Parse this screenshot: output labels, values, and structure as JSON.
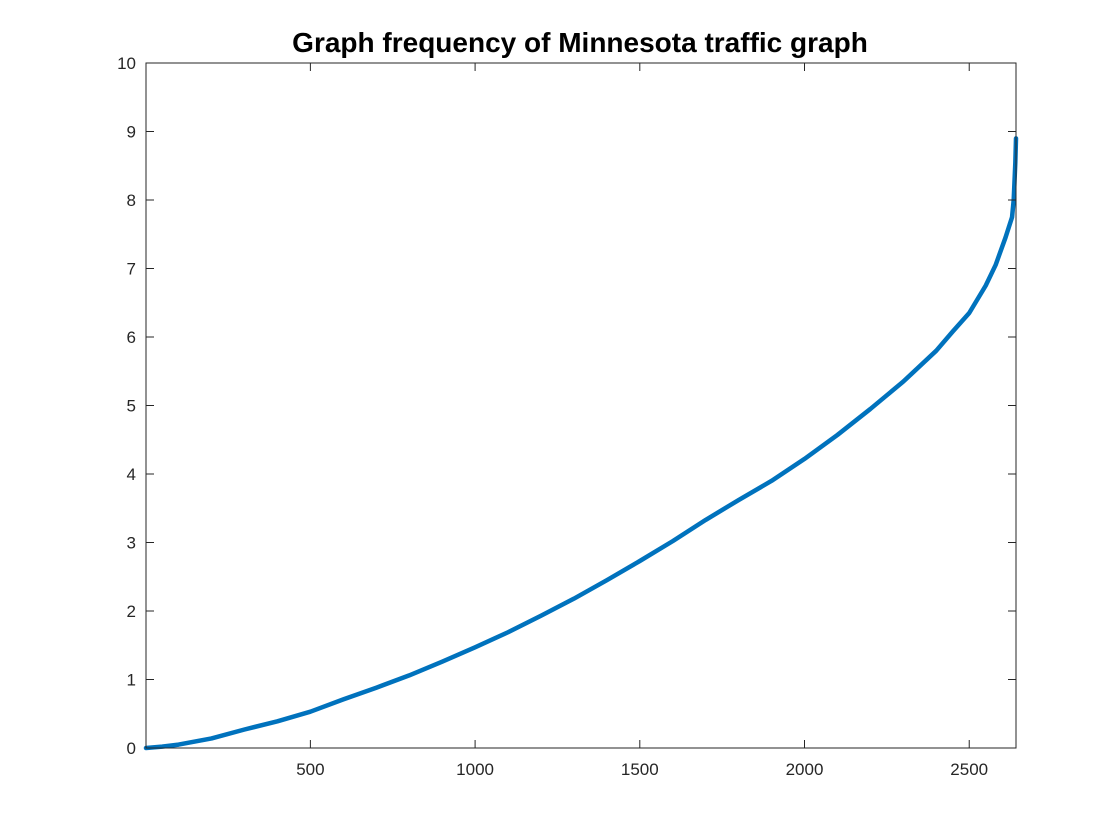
{
  "chart_data": {
    "type": "line",
    "title": "Graph frequency of Minnesota traffic graph",
    "xlabel": "",
    "ylabel": "",
    "xlim": [
      1,
      2642
    ],
    "ylim": [
      0,
      10
    ],
    "xticks": [
      500,
      1000,
      1500,
      2000,
      2500
    ],
    "yticks": [
      0,
      1,
      2,
      3,
      4,
      5,
      6,
      7,
      8,
      9,
      10
    ],
    "grid": false,
    "legend": "none",
    "series": [
      {
        "color": "#0072BD",
        "x": [
          1,
          50,
          100,
          200,
          300,
          400,
          500,
          600,
          700,
          800,
          900,
          1000,
          1100,
          1200,
          1300,
          1400,
          1500,
          1600,
          1700,
          1800,
          1900,
          2000,
          2100,
          2200,
          2300,
          2400,
          2450,
          2500,
          2550,
          2580,
          2610,
          2620,
          2630,
          2635,
          2640,
          2642
        ],
        "y": [
          0.0,
          0.02,
          0.05,
          0.14,
          0.27,
          0.39,
          0.53,
          0.71,
          0.88,
          1.06,
          1.26,
          1.47,
          1.69,
          1.93,
          2.18,
          2.45,
          2.73,
          3.02,
          3.33,
          3.62,
          3.9,
          4.22,
          4.57,
          4.95,
          5.35,
          5.8,
          6.08,
          6.35,
          6.75,
          7.05,
          7.45,
          7.6,
          7.75,
          8.0,
          8.55,
          8.9
        ]
      }
    ]
  }
}
